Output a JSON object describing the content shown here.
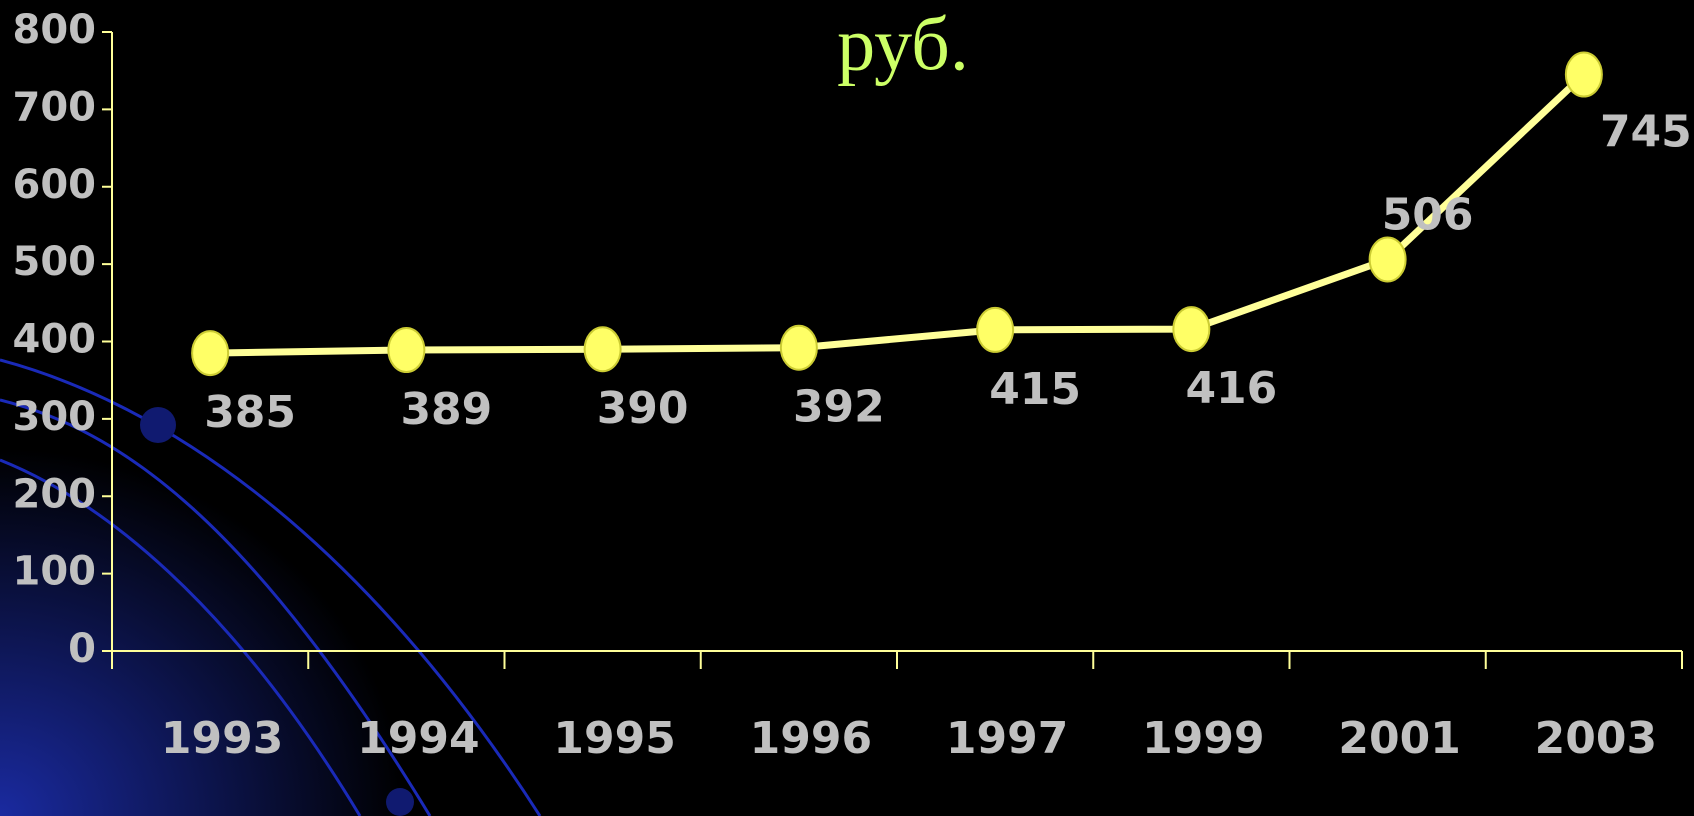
{
  "chart_data": {
    "type": "line",
    "title": "руб.",
    "categories": [
      "1993",
      "1994",
      "1995",
      "1996",
      "1997",
      "1999",
      "2001",
      "2003"
    ],
    "values": [
      385,
      389,
      390,
      392,
      415,
      416,
      506,
      745
    ],
    "color": "#ffff99",
    "marker_color": "#ffff66",
    "ylim": [
      0,
      800
    ],
    "yticks": [
      0,
      100,
      200,
      300,
      400,
      500,
      600,
      700,
      800
    ],
    "grid": false
  }
}
